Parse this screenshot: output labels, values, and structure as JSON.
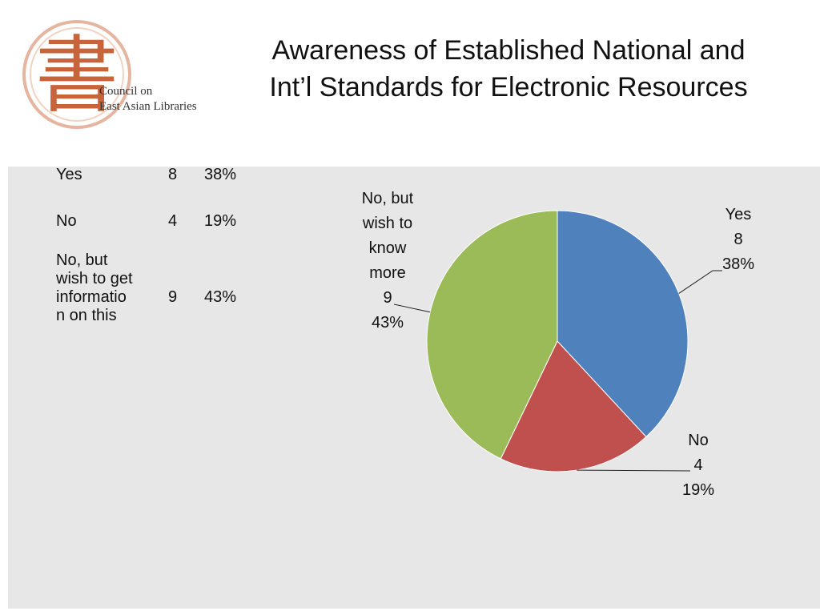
{
  "logo": {
    "glyph": "書",
    "line1": "Council on",
    "line2": "East Asian Libraries",
    "color": "#c8643c"
  },
  "title": {
    "line1": "Awareness of Established National and",
    "line2": "Int’l Standards for Electronic Resources"
  },
  "table": {
    "rows": [
      {
        "label_lines": [
          "Yes"
        ],
        "count": "8",
        "pct": "38%"
      },
      {
        "label_lines": [
          "No"
        ],
        "count": "4",
        "pct": "19%"
      },
      {
        "label_lines": [
          "No, but",
          "wish to get",
          "informatio",
          "n on this"
        ],
        "count": "9",
        "pct": "43%"
      }
    ]
  },
  "chart_data": {
    "type": "pie",
    "slices": [
      {
        "label_lines": [
          "Yes"
        ],
        "value": 8,
        "percent_label": "38%",
        "color": "#4f81bd"
      },
      {
        "label_lines": [
          "No"
        ],
        "value": 4,
        "percent_label": "19%",
        "color": "#c0504d"
      },
      {
        "label_lines": [
          "No, but",
          "wish to",
          "know",
          "more"
        ],
        "value": 9,
        "percent_label": "43%",
        "color": "#9bbb59"
      }
    ],
    "start_angle": "12 o'clock",
    "direction": "clockwise",
    "legend": "none"
  }
}
